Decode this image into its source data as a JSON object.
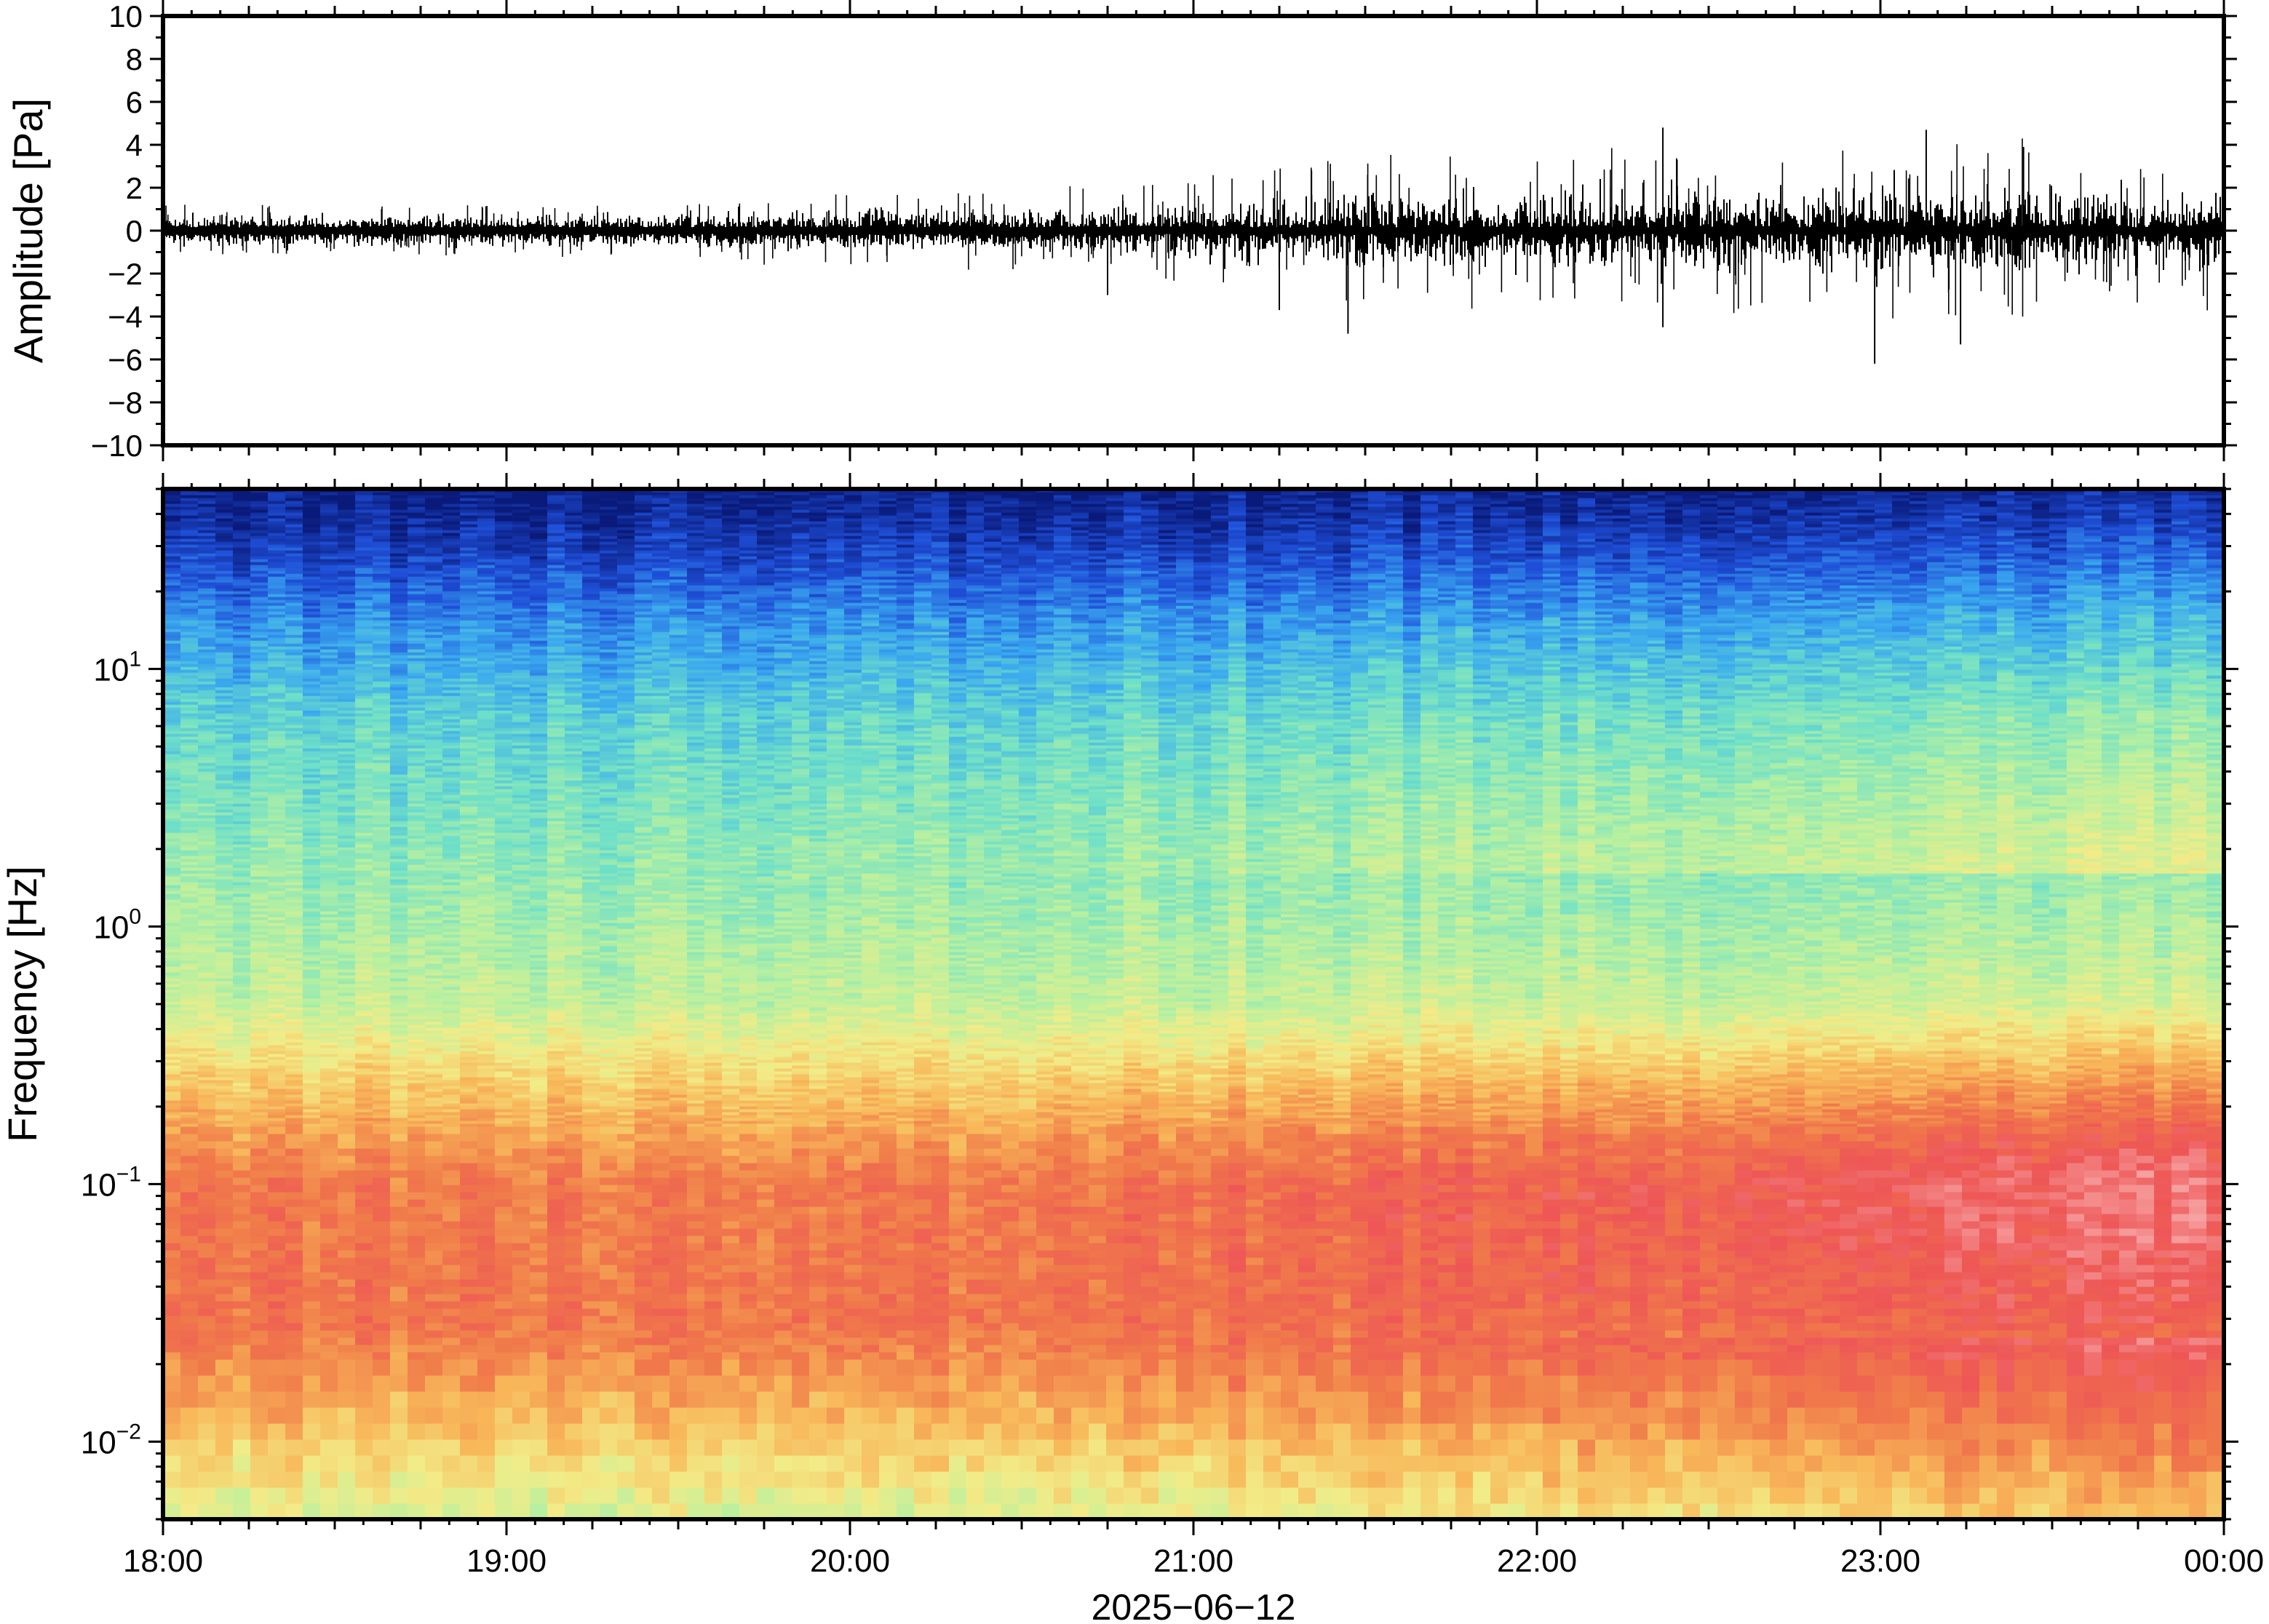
{
  "chart_data": [
    {
      "type": "line",
      "panel": "waveform",
      "ylabel": "Amplitude [Pa]",
      "ylim": [
        -10,
        10
      ],
      "yticks": [
        {
          "value": 10,
          "label": "10"
        },
        {
          "value": 8,
          "label": "8"
        },
        {
          "value": 6,
          "label": "6"
        },
        {
          "value": 4,
          "label": "4"
        },
        {
          "value": 2,
          "label": "2"
        },
        {
          "value": 0,
          "label": "0"
        },
        {
          "value": -2,
          "label": "−2"
        },
        {
          "value": -4,
          "label": "−4"
        },
        {
          "value": -6,
          "label": "−6"
        },
        {
          "value": -8,
          "label": "−8"
        },
        {
          "value": -10,
          "label": "−10"
        }
      ],
      "xlim": [
        "2025-06-12T18:00",
        "2025-06-13T00:00"
      ],
      "envelope": {
        "hours": [
          18.0,
          18.5,
          19.0,
          19.5,
          20.0,
          20.5,
          21.0,
          21.5,
          22.0,
          22.5,
          23.0,
          23.5,
          24.0
        ],
        "amplitude": [
          0.5,
          0.5,
          0.5,
          0.6,
          0.7,
          0.8,
          1.0,
          1.4,
          1.5,
          1.6,
          1.9,
          1.7,
          1.5
        ]
      },
      "spikes": [
        {
          "time": "2025-06-12T21:27",
          "value": -4.8
        },
        {
          "time": "2025-06-12T21:15",
          "value": -3.7
        },
        {
          "time": "2025-06-12T22:22",
          "value": 4.8
        },
        {
          "time": "2025-06-12T22:22",
          "value": -4.5
        },
        {
          "time": "2025-06-12T22:59",
          "value": -6.2
        },
        {
          "time": "2025-06-12T23:08",
          "value": 4.7
        },
        {
          "time": "2025-06-12T23:14",
          "value": -5.3
        },
        {
          "time": "2025-06-12T23:25",
          "value": 3.9
        },
        {
          "time": "2025-06-12T20:45",
          "value": -3.0
        }
      ],
      "grid": false
    },
    {
      "type": "heatmap",
      "panel": "spectrogram",
      "ylabel": "Frequency [Hz]",
      "yscale": "log",
      "ylim": [
        0.005,
        50
      ],
      "yticks": [
        {
          "value": 10,
          "base": "10",
          "exp": "1"
        },
        {
          "value": 1,
          "base": "10",
          "exp": "0"
        },
        {
          "value": 0.1,
          "base": "10",
          "exp": "−1"
        },
        {
          "value": 0.01,
          "base": "10",
          "exp": "−2"
        }
      ],
      "colormap": "rainbow (blue = low power, red/pink = high power)",
      "colormap_stops": [
        "#0a1a7a",
        "#1f4fd8",
        "#3aa8ef",
        "#6fe0c8",
        "#b8f0a0",
        "#f2ec88",
        "#f8b85a",
        "#f07a4a",
        "#ee5656",
        "#f7a5a5"
      ],
      "xlabel": "2025−06−12",
      "xticks": [
        "18:00",
        "19:00",
        "20:00",
        "21:00",
        "22:00",
        "23:00",
        "00:00"
      ],
      "xlim": [
        "2025-06-12T18:00",
        "2025-06-13T00:00"
      ],
      "grid": false
    }
  ]
}
